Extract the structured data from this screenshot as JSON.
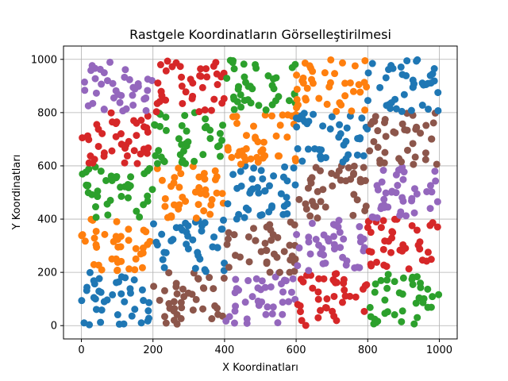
{
  "chart_data": {
    "type": "scatter",
    "title": "Rastgele Koordinatların Görselleştirilmesi",
    "xlabel": "X Koordinatları",
    "ylabel": "Y Koordinatları",
    "xlim": [
      -50,
      1050
    ],
    "ylim": [
      -50,
      1050
    ],
    "xticks": [
      0,
      200,
      400,
      600,
      800,
      1000
    ],
    "yticks": [
      0,
      200,
      400,
      600,
      800,
      1000
    ],
    "grid": true,
    "cell_width": 200,
    "cell_height": 200,
    "points_per_cell": 40,
    "random_seed": 42,
    "colors": {
      "blue": "#1f77b4",
      "orange": "#ff7f0e",
      "green": "#2ca02c",
      "red": "#d62728",
      "purple": "#9467bd",
      "brown": "#8c564b"
    },
    "cells": [
      {
        "x_range": [
          0,
          200
        ],
        "y_range": [
          0,
          200
        ],
        "color": "blue"
      },
      {
        "x_range": [
          200,
          400
        ],
        "y_range": [
          0,
          200
        ],
        "color": "brown"
      },
      {
        "x_range": [
          400,
          600
        ],
        "y_range": [
          0,
          200
        ],
        "color": "purple"
      },
      {
        "x_range": [
          600,
          800
        ],
        "y_range": [
          0,
          200
        ],
        "color": "red"
      },
      {
        "x_range": [
          800,
          1000
        ],
        "y_range": [
          0,
          200
        ],
        "color": "green"
      },
      {
        "x_range": [
          0,
          200
        ],
        "y_range": [
          200,
          400
        ],
        "color": "orange"
      },
      {
        "x_range": [
          200,
          400
        ],
        "y_range": [
          200,
          400
        ],
        "color": "blue"
      },
      {
        "x_range": [
          400,
          600
        ],
        "y_range": [
          200,
          400
        ],
        "color": "brown"
      },
      {
        "x_range": [
          600,
          800
        ],
        "y_range": [
          200,
          400
        ],
        "color": "purple"
      },
      {
        "x_range": [
          800,
          1000
        ],
        "y_range": [
          200,
          400
        ],
        "color": "red"
      },
      {
        "x_range": [
          0,
          200
        ],
        "y_range": [
          400,
          600
        ],
        "color": "green"
      },
      {
        "x_range": [
          200,
          400
        ],
        "y_range": [
          400,
          600
        ],
        "color": "orange"
      },
      {
        "x_range": [
          400,
          600
        ],
        "y_range": [
          400,
          600
        ],
        "color": "blue"
      },
      {
        "x_range": [
          600,
          800
        ],
        "y_range": [
          400,
          600
        ],
        "color": "brown"
      },
      {
        "x_range": [
          800,
          1000
        ],
        "y_range": [
          400,
          600
        ],
        "color": "purple"
      },
      {
        "x_range": [
          0,
          200
        ],
        "y_range": [
          600,
          800
        ],
        "color": "red"
      },
      {
        "x_range": [
          200,
          400
        ],
        "y_range": [
          600,
          800
        ],
        "color": "green"
      },
      {
        "x_range": [
          400,
          600
        ],
        "y_range": [
          600,
          800
        ],
        "color": "orange"
      },
      {
        "x_range": [
          600,
          800
        ],
        "y_range": [
          600,
          800
        ],
        "color": "blue"
      },
      {
        "x_range": [
          800,
          1000
        ],
        "y_range": [
          600,
          800
        ],
        "color": "brown"
      },
      {
        "x_range": [
          0,
          200
        ],
        "y_range": [
          800,
          1000
        ],
        "color": "purple"
      },
      {
        "x_range": [
          200,
          400
        ],
        "y_range": [
          800,
          1000
        ],
        "color": "red"
      },
      {
        "x_range": [
          400,
          600
        ],
        "y_range": [
          800,
          1000
        ],
        "color": "green"
      },
      {
        "x_range": [
          600,
          800
        ],
        "y_range": [
          800,
          1000
        ],
        "color": "orange"
      },
      {
        "x_range": [
          800,
          1000
        ],
        "y_range": [
          800,
          1000
        ],
        "color": "blue"
      }
    ]
  }
}
